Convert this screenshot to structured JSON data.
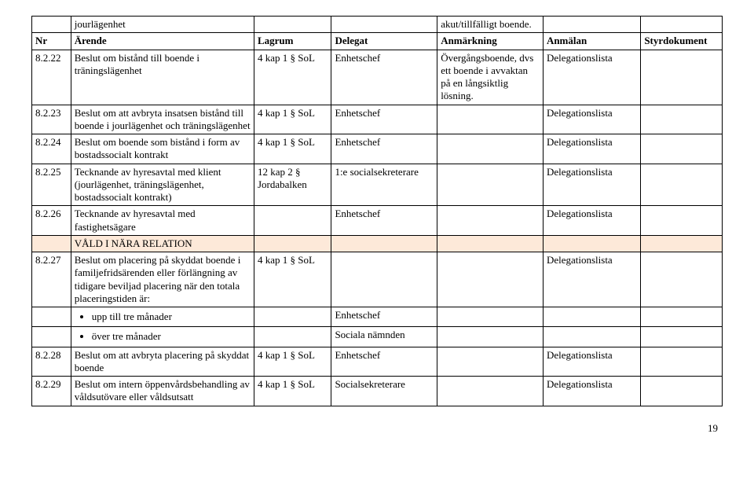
{
  "table": {
    "headers": {
      "nr": "Nr",
      "arende": "Ärende",
      "lagrum": "Lagrum",
      "delegat": "Delegat",
      "anm": "Anmärkning",
      "anmalan": "Anmälan",
      "styr": "Styrdokument"
    },
    "pre_header_row": {
      "arende": "jourlägenhet",
      "anm": "akut/tillfälligt boende."
    },
    "rows": {
      "r1": {
        "nr": "8.2.22",
        "arende": "Beslut om bistånd till boende i träningslägenhet",
        "lagrum": "4 kap 1 § SoL",
        "delegat": "Enhetschef",
        "anm": "Övergångsboende, dvs ett boende i avvaktan på en långsiktlig lösning.",
        "anmalan": "Delegationslista"
      },
      "r2": {
        "nr": "8.2.23",
        "arende": "Beslut om att avbryta insatsen bistånd till boende i jourlägenhet och träningslägenhet",
        "lagrum": "4 kap 1 § SoL",
        "delegat": "Enhetschef",
        "anm": "",
        "anmalan": "Delegationslista"
      },
      "r3": {
        "nr": "8.2.24",
        "arende": "Beslut om boende som bistånd i form av bostadssocialt kontrakt",
        "lagrum": "4 kap 1 § SoL",
        "delegat": "Enhetschef",
        "anm": "",
        "anmalan": "Delegationslista"
      },
      "r4": {
        "nr": "8.2.25",
        "arende": "Tecknande av hyresavtal med klient (jourlägenhet, träningslägenhet, bostadssocialt kontrakt)",
        "lagrum": "12 kap 2 § Jordabalken",
        "delegat": "1:e socialsekreterare",
        "anm": "",
        "anmalan": "Delegationslista"
      },
      "r5": {
        "nr": "8.2.26",
        "arende": "Tecknande av hyresavtal med fastighetsägare",
        "lagrum": "",
        "delegat": "Enhetschef",
        "anm": "",
        "anmalan": "Delegationslista"
      },
      "section": {
        "label": "VÅLD I NÄRA RELATION"
      },
      "r6": {
        "nr": "8.2.27",
        "arende": "Beslut om placering på skyddat boende i familjefridsärenden eller förlängning av tidigare beviljad placering när den totala placeringstiden är:",
        "lagrum": "4 kap 1 § SoL",
        "delegat": "",
        "anm": "",
        "anmalan": "Delegationslista"
      },
      "b1": {
        "text": "upp till tre månader",
        "delegat": "Enhetschef"
      },
      "b2": {
        "text": "över tre månader",
        "delegat": "Sociala nämnden"
      },
      "r7": {
        "nr": "8.2.28",
        "arende": "Beslut om att avbryta placering på skyddat boende",
        "lagrum": "4 kap 1 § SoL",
        "delegat": "Enhetschef",
        "anm": "",
        "anmalan": "Delegationslista"
      },
      "r8": {
        "nr": "8.2.29",
        "arende": "Beslut om intern öppenvårdsbehandling av våldsutövare eller våldsutsatt",
        "lagrum": "4 kap 1 § SoL",
        "delegat": "Socialsekreterare",
        "anm": "",
        "anmalan": "Delegationslista"
      }
    }
  },
  "page_number": "19"
}
